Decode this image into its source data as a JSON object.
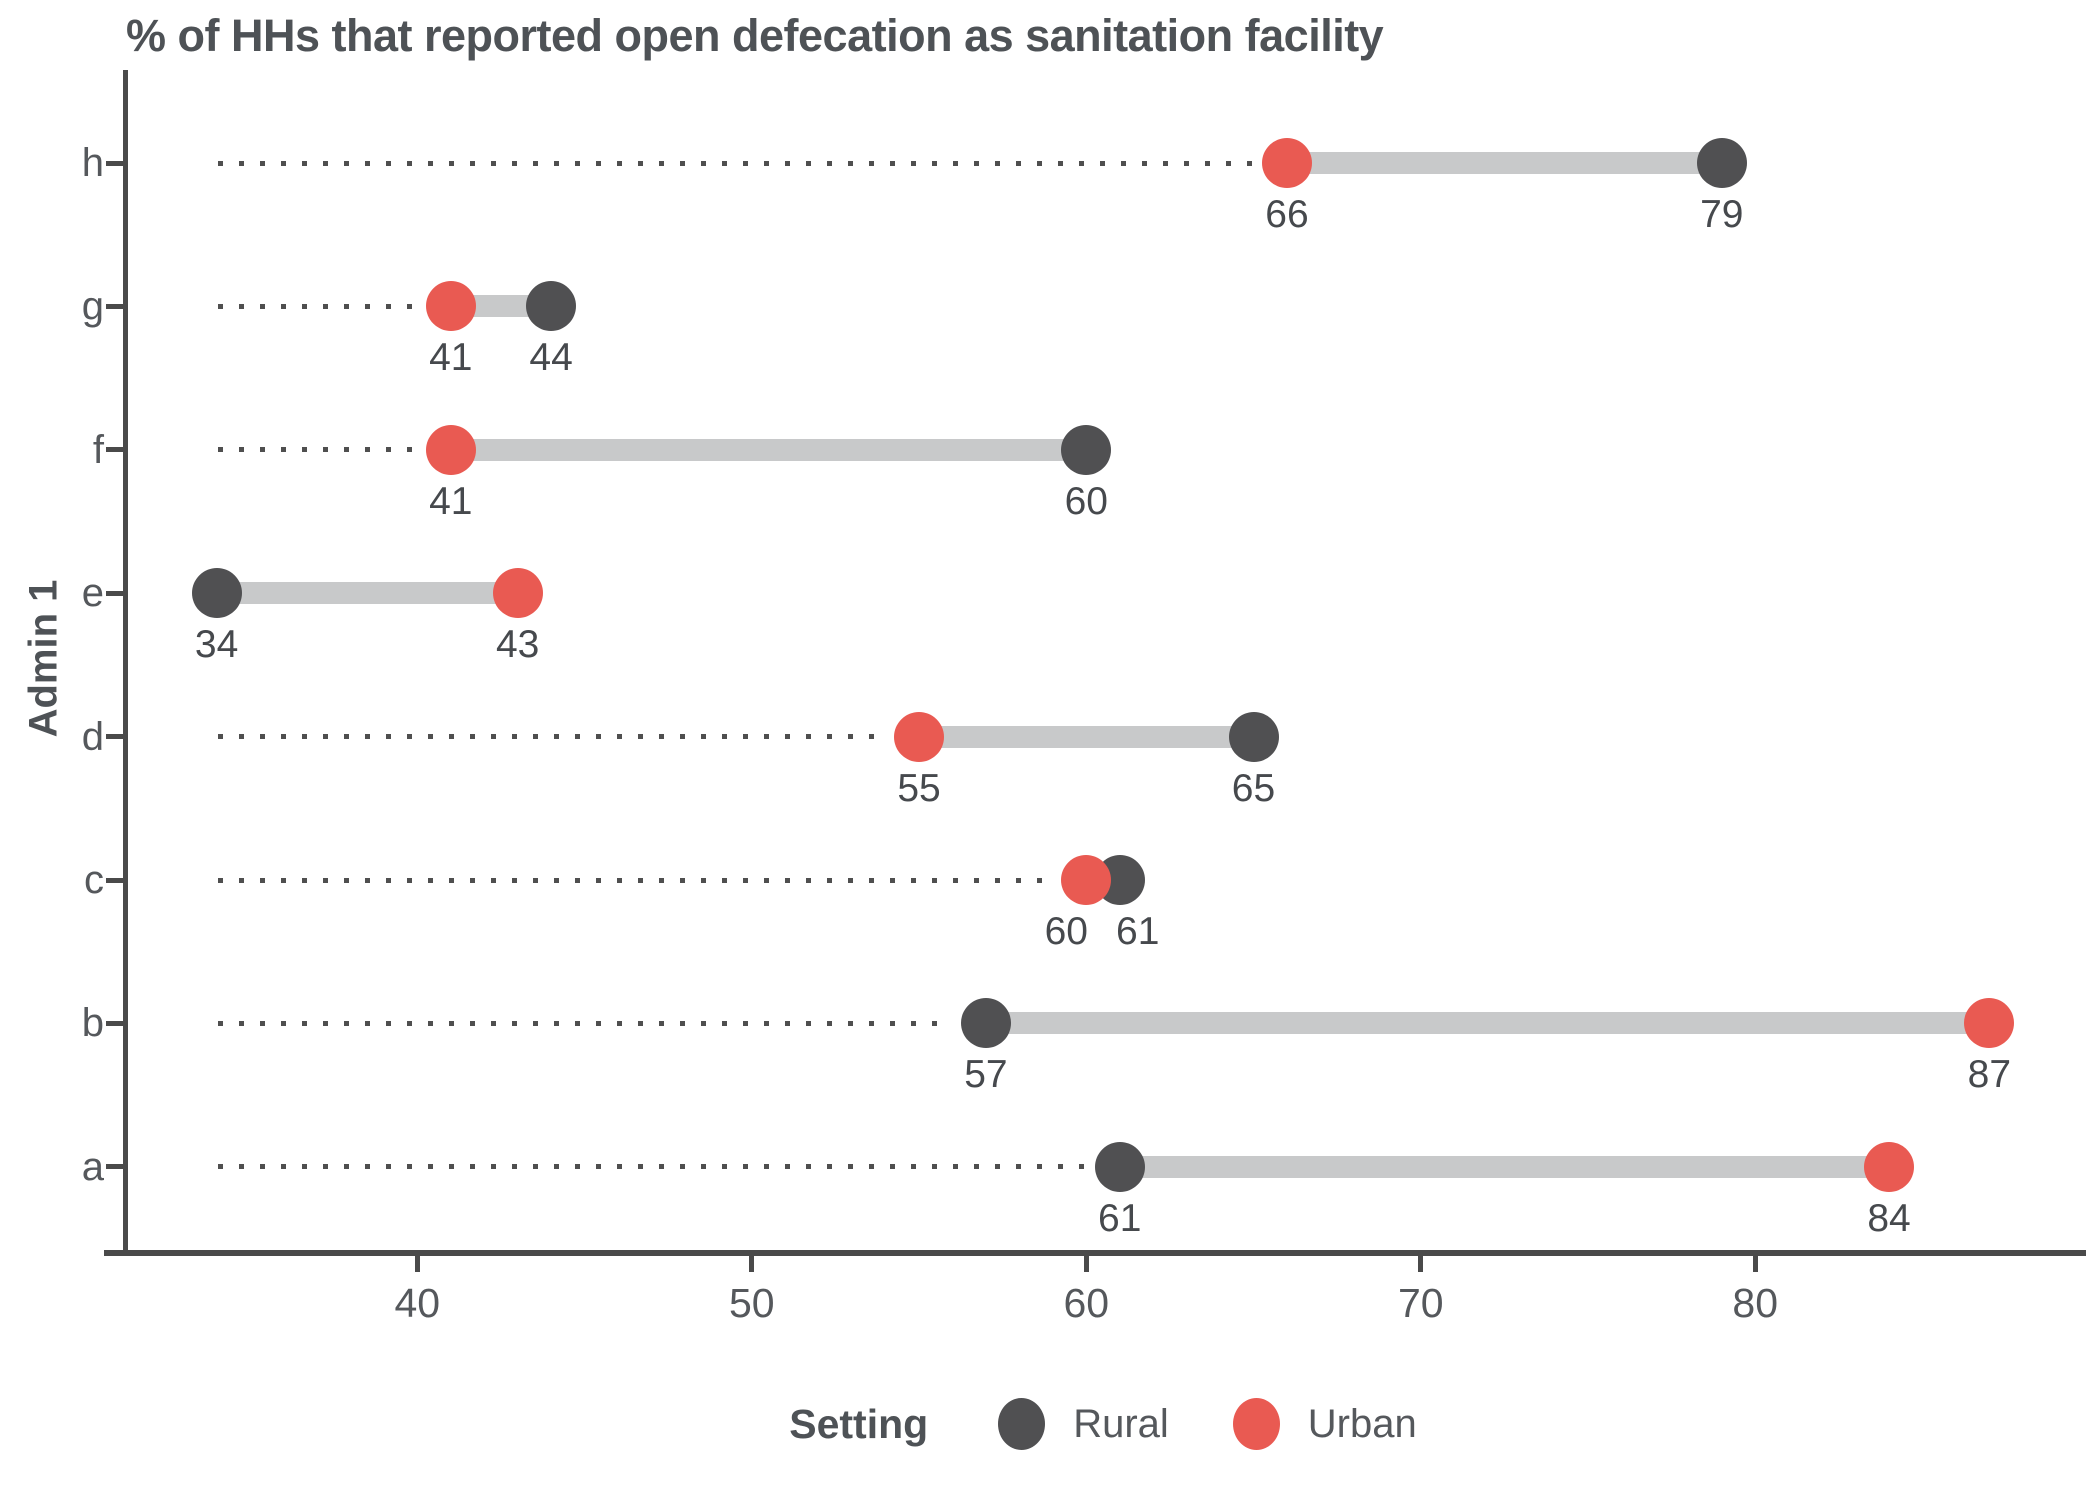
{
  "title": "% of HHs that reported open defecation as sanitation facility",
  "axes": {
    "y_title": "Admin 1",
    "x_tick_labels": [
      "40",
      "50",
      "60",
      "70",
      "80"
    ]
  },
  "legend": {
    "title": "Setting",
    "items": [
      {
        "label": "Rural",
        "color": "#505052"
      },
      {
        "label": "Urban",
        "color": "#e95a52"
      }
    ]
  },
  "colors": {
    "rural": "#505052",
    "urban": "#e95a52",
    "connector_bar": "#c8c9ca",
    "leader_dots": "#4f4f4f",
    "axis": "#4a4a4a",
    "title_text": "#4e5256",
    "tick_text": "#55585c",
    "value_text": "#46494d"
  },
  "chart_data": {
    "type": "dumbbell",
    "title": "% of HHs that reported open defecation as sanitation facility",
    "xlabel": "",
    "ylabel": "Admin 1",
    "categories": [
      "h",
      "g",
      "f",
      "e",
      "d",
      "c",
      "b",
      "a"
    ],
    "series": [
      {
        "name": "Rural",
        "values": [
          79,
          44,
          60,
          34,
          65,
          61,
          57,
          61
        ]
      },
      {
        "name": "Urban",
        "values": [
          66,
          41,
          41,
          43,
          55,
          60,
          87,
          84
        ]
      }
    ],
    "point_labels": {
      "Rural": [
        79,
        44,
        60,
        34,
        65,
        61,
        57,
        61
      ],
      "Urban": [
        66,
        41,
        41,
        43,
        55,
        60,
        87,
        84
      ]
    },
    "x_ticks": [
      40,
      50,
      60,
      70,
      80
    ],
    "xlim": [
      31.35,
      89.65
    ],
    "grid": false,
    "leader_lines": "dotted",
    "legend_position": "bottom"
  }
}
